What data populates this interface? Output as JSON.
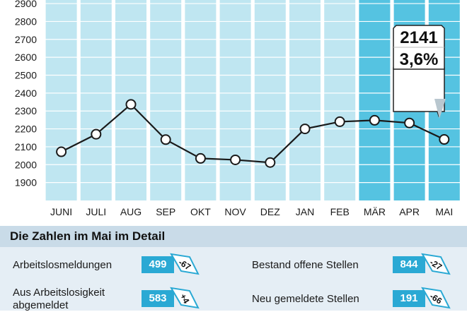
{
  "chart_data": {
    "type": "line",
    "categories": [
      "JUNI",
      "JULI",
      "AUG",
      "SEP",
      "OKT",
      "NOV",
      "DEZ",
      "JAN",
      "FEB",
      "MÄR",
      "APR",
      "MAI"
    ],
    "values": [
      2072,
      2170,
      2337,
      2140,
      2035,
      2027,
      2012,
      2200,
      2240,
      2248,
      2233,
      2141
    ],
    "highlighted_categories": [
      "MÄR",
      "APR",
      "MAI"
    ],
    "y_ticks": [
      1900,
      2000,
      2100,
      2200,
      2300,
      2400,
      2500,
      2600,
      2700,
      2800,
      2900
    ],
    "ylim": [
      1800,
      2920
    ],
    "grid": true,
    "callout": {
      "value": "2141",
      "rate": "3,6%"
    },
    "colors": {
      "column": "#bfe6f1",
      "column_highlight": "#55c3e1",
      "line": "#1a1a1a",
      "marker_fill": "#ffffff"
    }
  },
  "detail": {
    "title": "Die Zahlen im Mai im Detail",
    "rows": [
      {
        "label": "Arbeitslosmeldungen",
        "value": "499",
        "change": "-67"
      },
      {
        "label": "Aus Arbeitslosigkeit abgemeldet",
        "value": "583",
        "change": "+4"
      },
      {
        "label": "Bestand offene Stellen",
        "value": "844",
        "change": "-27"
      },
      {
        "label": "Neu gemeldete Stellen",
        "value": "191",
        "change": "-66"
      }
    ],
    "colors": {
      "value_box": "#2aa9d4",
      "arrow_fill": "#ffffff",
      "arrow_stroke": "#2aa9d4"
    }
  }
}
